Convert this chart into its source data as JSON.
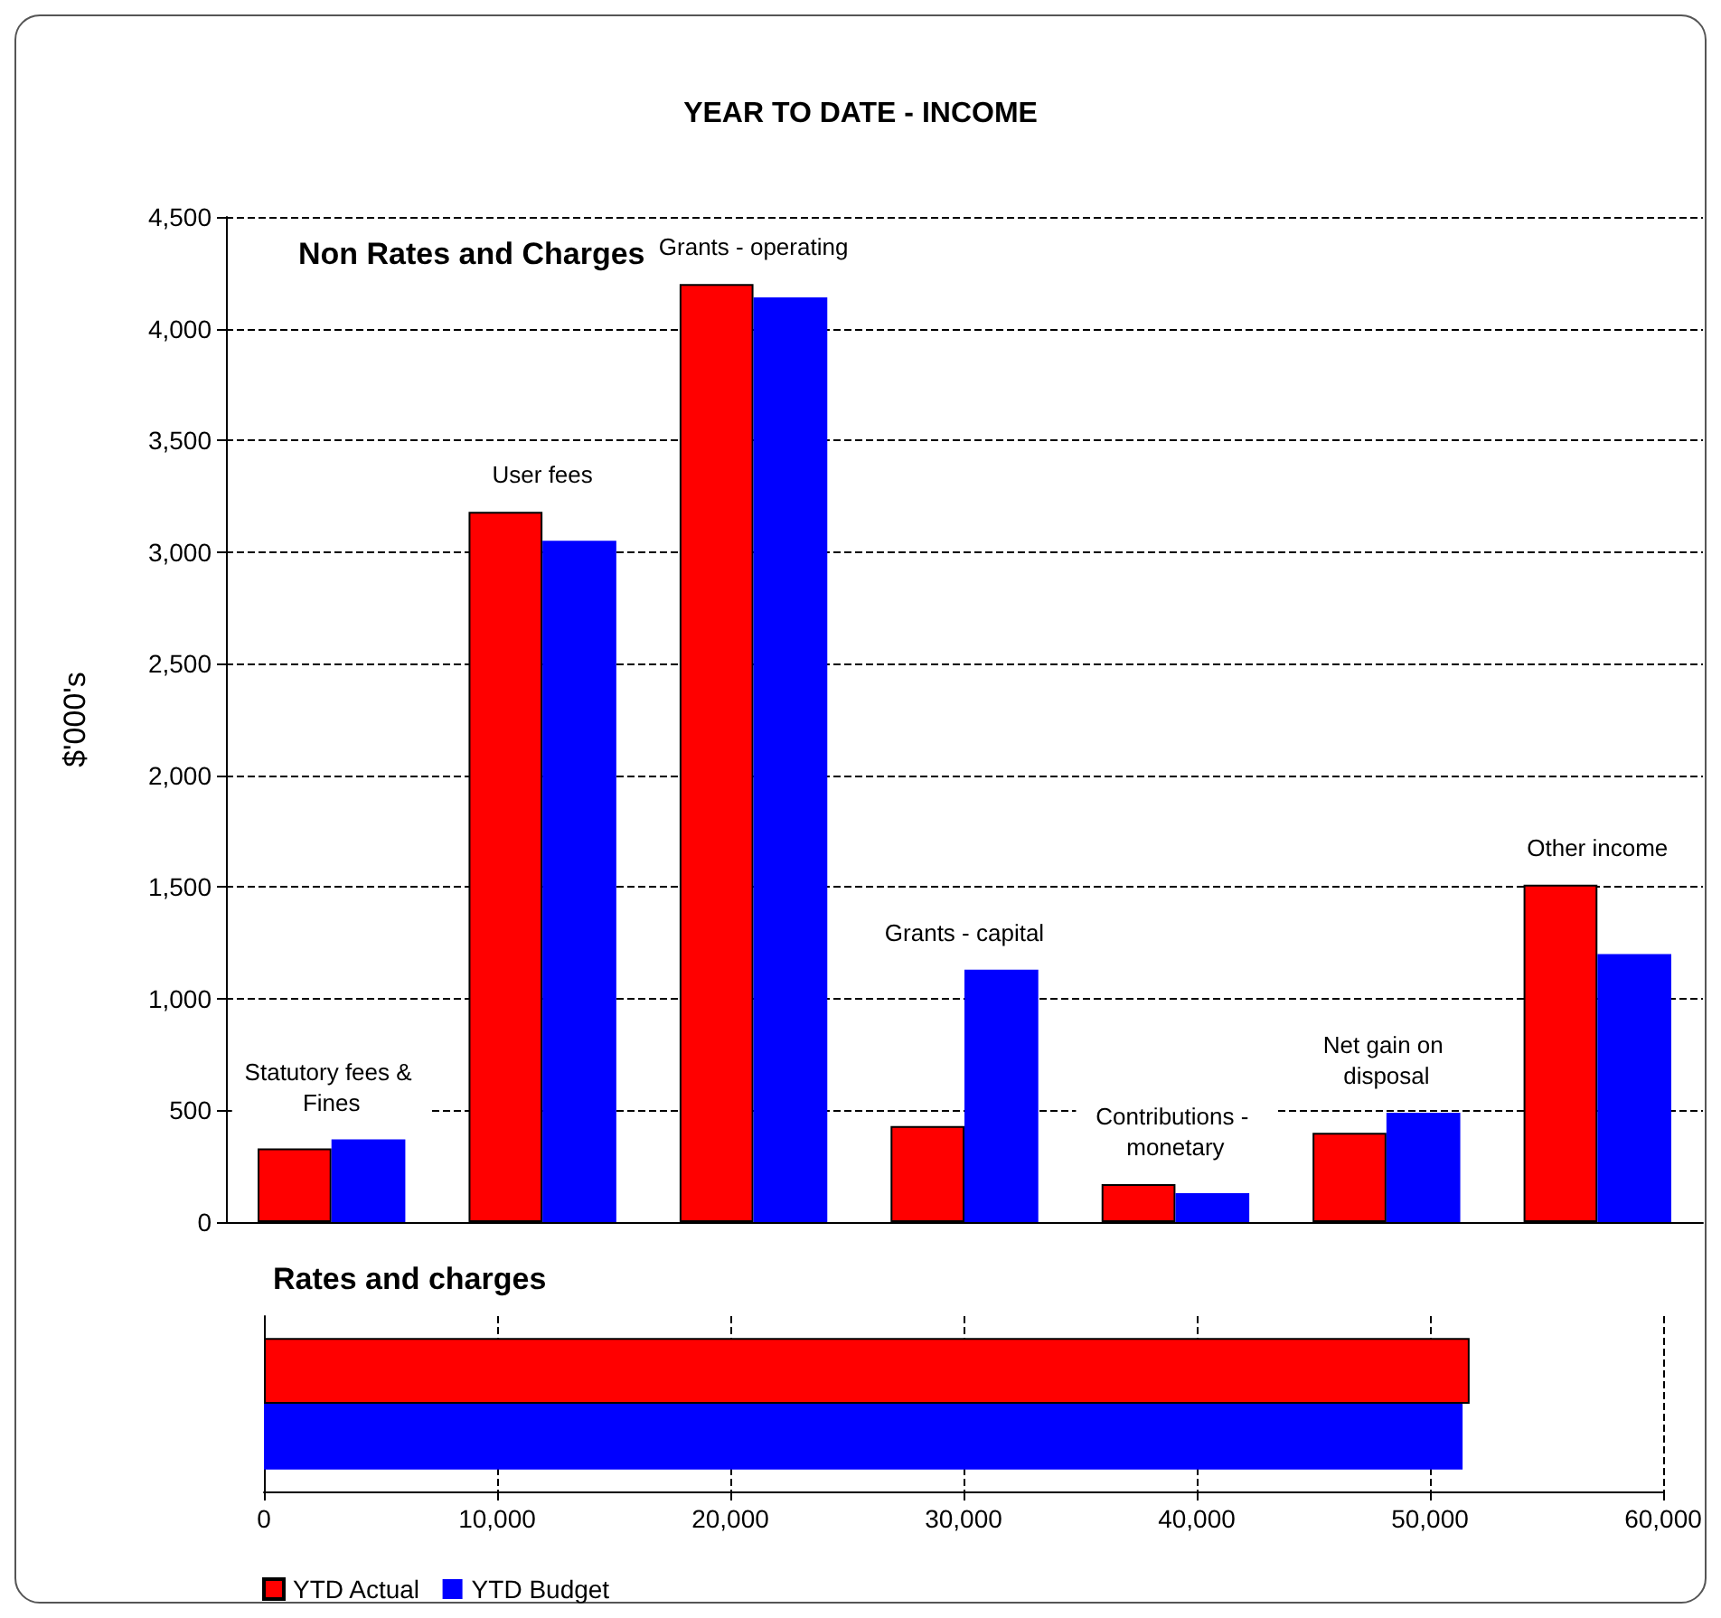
{
  "chart_data": [
    {
      "type": "bar",
      "title": "YEAR TO DATE - INCOME",
      "subtitle": "Non Rates and Charges",
      "ylabel": "$'000's",
      "categories": [
        "Statutory fees & Fines",
        "User fees",
        "Grants - operating",
        "Grants - capital",
        "Contributions - monetary",
        "Net gain on disposal",
        "Other income"
      ],
      "series": [
        {
          "color": "#ff0000",
          "values": [
            330,
            3180,
            4200,
            430,
            170,
            400,
            1510
          ]
        },
        {
          "color": "#0000ff",
          "values": [
            370,
            3050,
            4140,
            1130,
            130,
            490,
            1200
          ]
        }
      ],
      "ylim": [
        0,
        4500
      ],
      "yticks": [
        0,
        {
          "value": 500,
          "label": "500"
        },
        {
          "value": 1000,
          "label": "1,000"
        },
        {
          "value": 1500,
          "label": "1,500"
        },
        {
          "value": 2000,
          "label": "2,000"
        },
        {
          "value": 2500,
          "label": "2,500"
        },
        {
          "value": 3000,
          "label": "3,000"
        },
        {
          "value": 3500,
          "label": "3,500"
        },
        {
          "value": 4000,
          "label": "4,000"
        },
        {
          "value": 4500,
          "label": "4,500"
        }
      ],
      "grid": "y",
      "legend": false
    },
    {
      "type": "bar",
      "orientation": "horizontal",
      "title": "Rates and charges",
      "categories": [
        null
      ],
      "series": [
        {
          "name": "YTD Actual",
          "color": "#ff0000",
          "values": [
            51700
          ]
        },
        {
          "name": "YTD Budget",
          "color": "#0000ff",
          "values": [
            51400
          ]
        }
      ],
      "xlim": [
        0,
        60000
      ],
      "xticks": [
        0,
        {
          "value": 10000,
          "label": "10,000"
        },
        {
          "value": 20000,
          "label": "20,000"
        },
        {
          "value": 30000,
          "label": "30,000"
        },
        {
          "value": 40000,
          "label": "40,000"
        },
        {
          "value": 50000,
          "label": "50,000"
        },
        {
          "value": 60000,
          "label": "60,000"
        }
      ],
      "grid": "x",
      "legend": "bottom"
    }
  ]
}
